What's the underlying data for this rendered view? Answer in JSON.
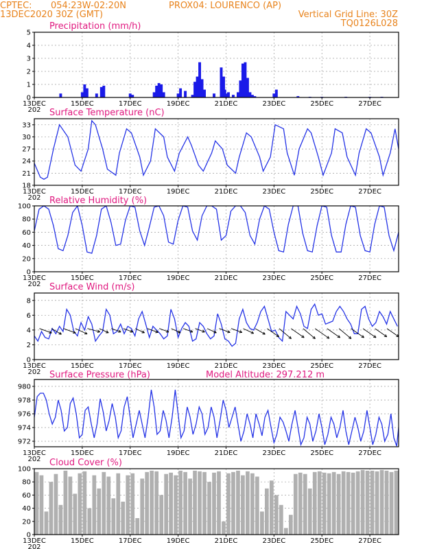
{
  "header": {
    "source": "CPTEC:",
    "coords": "054:23W-02:20N",
    "location": "PROX04: LOURENCO (AP)",
    "run": "13DEC2020 30Z (GMT)",
    "grid_note": "Vertical Grid Line: 30Z",
    "model_code": "TQ0126L028"
  },
  "x_axis": {
    "day_labels": [
      "13DEC",
      "15DEC",
      "17DEC",
      "19DEC",
      "21DEC",
      "23DEC",
      "25DEC",
      "27DEC"
    ],
    "partial_label": "202"
  },
  "colors": {
    "title": "#e0187f",
    "header": "#e8831c",
    "line": "#2332e6",
    "bar": "#1a1ae8",
    "cloud": "#b0b0b0"
  },
  "chart_data": [
    {
      "id": "precip",
      "type": "bar",
      "title": "Precipitation (mm/h)",
      "ylabel": "mm/h",
      "ylim": [
        0,
        5
      ],
      "yticks": [
        0,
        1,
        2,
        3,
        4,
        5
      ],
      "x_start_day": 13,
      "x_end_day": 28.2,
      "samples_per_day": 8,
      "x": [
        14.1,
        15.0,
        15.1,
        15.2,
        15.6,
        15.8,
        15.9,
        17.0,
        17.1,
        18.0,
        18.1,
        18.2,
        18.3,
        18.4,
        19.0,
        19.1,
        19.3,
        19.6,
        19.7,
        19.8,
        19.9,
        20.0,
        20.1,
        20.5,
        20.8,
        20.9,
        20.95,
        21.0,
        21.1,
        21.3,
        21.5,
        21.6,
        21.7,
        21.8,
        21.9,
        22.0,
        22.1,
        22.2,
        23.0,
        23.1,
        24.0,
        24.5,
        25.0,
        26.0,
        27.0,
        27.5
      ],
      "values": [
        0.3,
        0.4,
        1.0,
        0.7,
        0.3,
        0.8,
        0.9,
        0.3,
        0.2,
        0.4,
        0.9,
        1.1,
        1.0,
        0.4,
        0.3,
        0.7,
        0.5,
        0.2,
        1.2,
        1.6,
        2.7,
        1.4,
        0.6,
        0.3,
        2.3,
        1.6,
        0.6,
        0.3,
        0.4,
        0.2,
        0.4,
        1.3,
        2.6,
        2.7,
        1.5,
        0.4,
        0.2,
        0.1,
        0.3,
        0.6,
        0.1,
        0.05,
        0.05,
        0.05,
        0.05,
        0.05
      ]
    },
    {
      "id": "temp",
      "type": "line",
      "title": "Surface Temperature (nC)",
      "ylabel": "nC",
      "ylim": [
        18,
        34.5
      ],
      "yticks": [
        18,
        21,
        24,
        27,
        30,
        33
      ],
      "x_start_day": 13,
      "x_end_day": 28.2,
      "x": [
        13.0,
        13.25,
        13.4,
        13.55,
        13.8,
        14.05,
        14.4,
        14.7,
        14.95,
        15.25,
        15.4,
        15.55,
        15.85,
        16.05,
        16.4,
        16.55,
        16.85,
        17.05,
        17.4,
        17.55,
        17.85,
        18.05,
        18.4,
        18.55,
        18.85,
        19.05,
        19.4,
        19.55,
        19.85,
        20.05,
        20.4,
        20.55,
        20.85,
        21.05,
        21.4,
        21.55,
        21.85,
        22.05,
        22.4,
        22.55,
        22.85,
        23.05,
        23.4,
        23.55,
        23.85,
        24.05,
        24.4,
        24.55,
        24.85,
        25.05,
        25.4,
        25.55,
        25.85,
        26.05,
        26.4,
        26.55,
        26.85,
        27.05,
        27.4,
        27.55,
        27.85,
        28.05,
        28.2
      ],
      "values": [
        23.5,
        20,
        19.5,
        20,
        27,
        33,
        30,
        23,
        21.5,
        27,
        34,
        33,
        27,
        22,
        20.5,
        26,
        32,
        31,
        25,
        20.5,
        24,
        32,
        30,
        25,
        21.5,
        26,
        30,
        28,
        23,
        21.5,
        26,
        29,
        27,
        23,
        21,
        25,
        31,
        30,
        25,
        21.5,
        25,
        33,
        32,
        26,
        20.5,
        27,
        32,
        31,
        25,
        20.5,
        26,
        32,
        31,
        25,
        20.5,
        26,
        32,
        31,
        25,
        20.5,
        26,
        32,
        27
      ]
    },
    {
      "id": "rh",
      "type": "line",
      "title": "Relative Humidity (%)",
      "ylabel": "%",
      "ylim": [
        0,
        100
      ],
      "yticks": [
        0,
        20,
        40,
        60,
        80,
        100
      ],
      "x_start_day": 13,
      "x_end_day": 28.2,
      "x": [
        13.0,
        13.2,
        13.4,
        13.6,
        13.8,
        14.0,
        14.2,
        14.4,
        14.6,
        14.8,
        15.0,
        15.2,
        15.4,
        15.6,
        15.8,
        16.0,
        16.2,
        16.4,
        16.6,
        16.8,
        17.0,
        17.2,
        17.4,
        17.6,
        17.8,
        18.0,
        18.2,
        18.4,
        18.6,
        18.8,
        19.0,
        19.2,
        19.4,
        19.6,
        19.8,
        20.0,
        20.2,
        20.4,
        20.6,
        20.8,
        21.0,
        21.2,
        21.4,
        21.6,
        21.8,
        22.0,
        22.2,
        22.4,
        22.6,
        22.8,
        23.0,
        23.2,
        23.4,
        23.6,
        23.8,
        24.0,
        24.2,
        24.4,
        24.6,
        24.8,
        25.0,
        25.2,
        25.4,
        25.6,
        25.8,
        26.0,
        26.2,
        26.4,
        26.6,
        26.8,
        27.0,
        27.2,
        27.4,
        27.6,
        27.8,
        28.0,
        28.2
      ],
      "values": [
        62,
        95,
        100,
        95,
        70,
        35,
        32,
        55,
        90,
        100,
        70,
        30,
        28,
        55,
        95,
        100,
        75,
        40,
        42,
        78,
        100,
        98,
        62,
        40,
        68,
        98,
        100,
        85,
        45,
        42,
        78,
        100,
        98,
        62,
        48,
        85,
        100,
        100,
        95,
        48,
        55,
        92,
        100,
        100,
        90,
        55,
        42,
        80,
        100,
        95,
        60,
        32,
        30,
        72,
        100,
        100,
        58,
        32,
        30,
        70,
        100,
        98,
        55,
        30,
        30,
        72,
        100,
        98,
        55,
        32,
        30,
        72,
        100,
        98,
        55,
        32,
        60
      ]
    },
    {
      "id": "wind",
      "type": "line",
      "title": "Surface Wind (m/s)",
      "ylabel": "m/s",
      "ylim": [
        0,
        9
      ],
      "yticks": [
        0,
        2,
        4,
        6,
        8
      ],
      "x_start_day": 13,
      "x_end_day": 28.2,
      "x": [
        13.0,
        13.15,
        13.3,
        13.45,
        13.6,
        13.75,
        13.9,
        14.05,
        14.2,
        14.35,
        14.5,
        14.65,
        14.8,
        14.95,
        15.1,
        15.25,
        15.4,
        15.55,
        15.7,
        15.85,
        16.0,
        16.15,
        16.3,
        16.45,
        16.6,
        16.75,
        16.9,
        17.05,
        17.2,
        17.35,
        17.5,
        17.65,
        17.8,
        17.95,
        18.1,
        18.25,
        18.4,
        18.55,
        18.7,
        18.85,
        19.0,
        19.15,
        19.3,
        19.45,
        19.6,
        19.75,
        19.9,
        20.05,
        20.2,
        20.35,
        20.5,
        20.65,
        20.8,
        20.95,
        21.1,
        21.25,
        21.4,
        21.55,
        21.7,
        21.85,
        22.0,
        22.15,
        22.3,
        22.45,
        22.6,
        22.75,
        22.9,
        23.05,
        23.2,
        23.35,
        23.5,
        23.65,
        23.8,
        23.95,
        24.1,
        24.25,
        24.4,
        24.55,
        24.7,
        24.85,
        25.0,
        25.15,
        25.3,
        25.45,
        25.6,
        25.75,
        25.9,
        26.05,
        26.2,
        26.35,
        26.5,
        26.65,
        26.8,
        26.95,
        27.1,
        27.25,
        27.4,
        27.55,
        27.7,
        27.85,
        28.0,
        28.15
      ],
      "values": [
        3.2,
        2.5,
        3.8,
        3.0,
        2.8,
        4.2,
        3.5,
        4.5,
        3.8,
        6.8,
        6.0,
        3.8,
        3.2,
        5.0,
        4.0,
        5.8,
        4.8,
        2.5,
        3.2,
        3.8,
        6.8,
        6.0,
        3.5,
        3.8,
        4.8,
        3.5,
        4.5,
        4.2,
        3.2,
        5.5,
        6.5,
        4.8,
        3.0,
        4.5,
        4.0,
        3.5,
        2.8,
        3.2,
        6.8,
        5.5,
        3.0,
        4.2,
        5.0,
        4.5,
        2.5,
        2.8,
        5.0,
        4.5,
        3.5,
        2.8,
        3.2,
        6.2,
        4.8,
        2.8,
        2.5,
        1.8,
        2.2,
        5.5,
        6.8,
        5.0,
        4.2,
        4.0,
        5.0,
        6.5,
        7.2,
        5.5,
        3.8,
        4.0,
        3.0,
        2.5,
        6.5,
        6.0,
        5.5,
        7.2,
        6.2,
        4.5,
        4.2,
        6.8,
        7.5,
        6.0,
        6.2,
        4.8,
        5.0,
        5.2,
        6.5,
        7.2,
        6.5,
        5.5,
        4.8,
        3.5,
        3.5,
        6.8,
        7.2,
        5.5,
        4.5,
        5.0,
        6.5,
        5.8,
        4.8,
        6.5,
        5.5,
        4.5
      ],
      "arrows_x": [
        13.1,
        13.6,
        14.1,
        14.6,
        15.1,
        15.6,
        16.1,
        16.6,
        17.1,
        17.6,
        18.1,
        18.6,
        19.1,
        19.6,
        20.1,
        20.6,
        21.1,
        21.6,
        22.1,
        22.6,
        23.1,
        23.6,
        24.1,
        24.6,
        25.1,
        25.6,
        26.1,
        26.6,
        27.1,
        27.6
      ],
      "arrows_speed": [
        4.5,
        4.0,
        4.5,
        4.5,
        4.5,
        3.5,
        3.5,
        3.5,
        3.5,
        4.0,
        3.5,
        3.5,
        3.5,
        3.5,
        3.5,
        4.0,
        4.0,
        4.0,
        4.0,
        5.0,
        5.5,
        5.5,
        5.5,
        6.0,
        5.5,
        5.5,
        5.5,
        5.5,
        5.0,
        5.0
      ],
      "arrows_dir_deg": [
        200,
        210,
        200,
        205,
        195,
        205,
        200,
        200,
        205,
        200,
        200,
        205,
        200,
        200,
        205,
        200,
        200,
        205,
        210,
        215,
        220,
        215,
        220,
        215,
        215,
        220,
        215,
        215,
        215,
        215
      ]
    },
    {
      "id": "pres",
      "type": "line",
      "title": "Surface Pressure (hPa)",
      "subtitle": "Model Altitude: 297.212 m",
      "ylabel": "hPa",
      "ylim": [
        971.2,
        981
      ],
      "yticks": [
        972,
        974,
        976,
        978,
        980
      ],
      "x_start_day": 13,
      "x_end_day": 28.2,
      "x": [
        13.0,
        13.12,
        13.25,
        13.38,
        13.5,
        13.62,
        13.75,
        13.88,
        14.0,
        14.12,
        14.25,
        14.38,
        14.5,
        14.62,
        14.75,
        14.88,
        15.0,
        15.12,
        15.25,
        15.38,
        15.5,
        15.62,
        15.75,
        15.88,
        16.0,
        16.12,
        16.25,
        16.38,
        16.5,
        16.62,
        16.75,
        16.88,
        17.0,
        17.12,
        17.25,
        17.38,
        17.5,
        17.62,
        17.75,
        17.88,
        18.0,
        18.12,
        18.25,
        18.38,
        18.5,
        18.62,
        18.75,
        18.88,
        19.0,
        19.12,
        19.25,
        19.38,
        19.5,
        19.62,
        19.75,
        19.88,
        20.0,
        20.12,
        20.25,
        20.38,
        20.5,
        20.62,
        20.75,
        20.88,
        21.0,
        21.12,
        21.25,
        21.38,
        21.5,
        21.62,
        21.75,
        21.88,
        22.0,
        22.12,
        22.25,
        22.38,
        22.5,
        22.62,
        22.75,
        22.88,
        23.0,
        23.12,
        23.25,
        23.38,
        23.5,
        23.62,
        23.75,
        23.88,
        24.0,
        24.12,
        24.25,
        24.38,
        24.5,
        24.62,
        24.75,
        24.88,
        25.0,
        25.12,
        25.25,
        25.38,
        25.5,
        25.62,
        25.75,
        25.88,
        26.0,
        26.12,
        26.25,
        26.38,
        26.5,
        26.62,
        26.75,
        26.88,
        27.0,
        27.12,
        27.25,
        27.38,
        27.5,
        27.62,
        27.75,
        27.88,
        28.0,
        28.12,
        28.2
      ],
      "values": [
        975.5,
        978.5,
        979,
        979,
        978,
        976,
        974.5,
        975.5,
        978,
        976.5,
        973.5,
        974,
        977.5,
        978.3,
        976,
        972.5,
        973,
        976.5,
        977,
        974.5,
        972.5,
        974.5,
        978.2,
        976.2,
        973.5,
        975,
        977.5,
        975.5,
        972.5,
        973.5,
        977,
        978.5,
        975.5,
        972.5,
        974.5,
        976.5,
        974.5,
        972.5,
        975.5,
        979.5,
        977,
        973,
        973.5,
        976.5,
        975,
        972.5,
        975.5,
        979.5,
        976,
        972.5,
        973.5,
        977,
        975.5,
        973,
        974.5,
        977,
        976,
        973,
        974,
        977,
        975.5,
        972.5,
        975,
        978,
        976.5,
        974,
        975.5,
        977,
        974.5,
        972,
        973.5,
        976,
        974.5,
        972.5,
        976,
        974.5,
        972.8,
        975.5,
        976.5,
        974,
        971.8,
        973,
        975.5,
        974.8,
        973.5,
        972,
        974.5,
        976.5,
        974,
        971.5,
        972.5,
        975.5,
        974.5,
        972,
        973.5,
        976,
        974,
        971.5,
        973,
        975.5,
        974.5,
        972.5,
        974,
        976.5,
        973.5,
        971.5,
        973.5,
        975.5,
        974,
        972,
        973.5,
        976.5,
        974,
        971.5,
        973,
        975.5,
        974.5,
        972,
        973,
        976,
        972.5,
        971.3,
        974
      ]
    },
    {
      "id": "cloud",
      "type": "area",
      "title": "Cloud Cover (%)",
      "ylabel": "%",
      "ylim": [
        0,
        100
      ],
      "yticks": [
        0,
        20,
        40,
        60,
        80,
        100
      ],
      "x_start_day": 13,
      "x_end_day": 28.2,
      "x": [
        13.1,
        13.3,
        13.5,
        13.7,
        13.9,
        14.1,
        14.3,
        14.5,
        14.7,
        14.9,
        15.1,
        15.3,
        15.5,
        15.7,
        15.9,
        16.1,
        16.3,
        16.5,
        16.7,
        16.9,
        17.1,
        17.3,
        17.5,
        17.7,
        17.9,
        18.1,
        18.3,
        18.5,
        18.7,
        18.9,
        19.1,
        19.3,
        19.5,
        19.7,
        19.9,
        20.1,
        20.3,
        20.5,
        20.7,
        20.9,
        21.1,
        21.3,
        21.5,
        21.7,
        21.9,
        22.1,
        22.3,
        22.5,
        22.7,
        22.9,
        23.1,
        23.3,
        23.5,
        23.7,
        23.9,
        24.1,
        24.3,
        24.5,
        24.7,
        24.9,
        25.1,
        25.3,
        25.5,
        25.7,
        25.9,
        26.1,
        26.3,
        26.5,
        26.7,
        26.9,
        27.1,
        27.3,
        27.5,
        27.7,
        27.9,
        28.1
      ],
      "values": [
        95,
        90,
        35,
        80,
        92,
        45,
        97,
        88,
        62,
        93,
        96,
        40,
        90,
        70,
        95,
        88,
        55,
        93,
        50,
        90,
        93,
        25,
        85,
        95,
        97,
        96,
        60,
        92,
        94,
        90,
        97,
        95,
        85,
        97,
        96,
        95,
        80,
        94,
        96,
        20,
        93,
        95,
        97,
        90,
        96,
        93,
        88,
        35,
        70,
        82,
        60,
        45,
        10,
        30,
        92,
        94,
        92,
        70,
        95,
        96,
        94,
        93,
        95,
        92,
        96,
        95,
        94,
        96,
        98,
        97,
        97,
        96,
        98,
        97,
        95,
        97
      ]
    }
  ]
}
